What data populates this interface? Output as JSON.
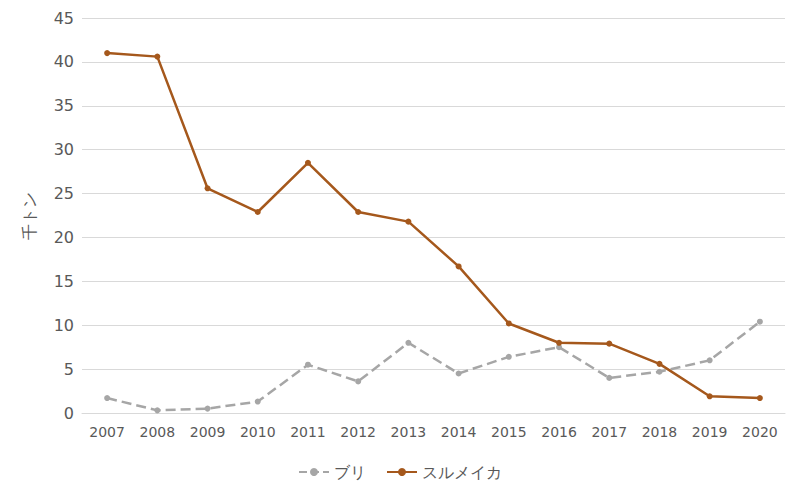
{
  "chart_data": {
    "type": "line",
    "y_label": "千トン",
    "categories": [
      "2007",
      "2008",
      "2009",
      "2010",
      "2011",
      "2012",
      "2013",
      "2014",
      "2015",
      "2016",
      "2017",
      "2018",
      "2019",
      "2020"
    ],
    "series": [
      {
        "name": "ブリ",
        "color": "#a6a6a6",
        "line_style": "dashed",
        "marker": "circle",
        "values": [
          1.7,
          0.3,
          0.5,
          1.3,
          5.5,
          3.6,
          8.0,
          4.5,
          6.4,
          7.5,
          4.0,
          4.7,
          6.0,
          10.4
        ]
      },
      {
        "name": "スルメイカ",
        "color": "#a5581c",
        "line_style": "solid",
        "marker": "circle",
        "values": [
          41.0,
          40.6,
          25.6,
          22.9,
          28.5,
          22.9,
          21.8,
          16.7,
          10.2,
          8.0,
          7.9,
          5.6,
          1.9,
          1.7
        ]
      }
    ],
    "ylim": [
      0,
      45
    ],
    "yticks": [
      0,
      5,
      10,
      15,
      20,
      25,
      30,
      35,
      40,
      45
    ],
    "grid": true,
    "legend": "bottom"
  }
}
